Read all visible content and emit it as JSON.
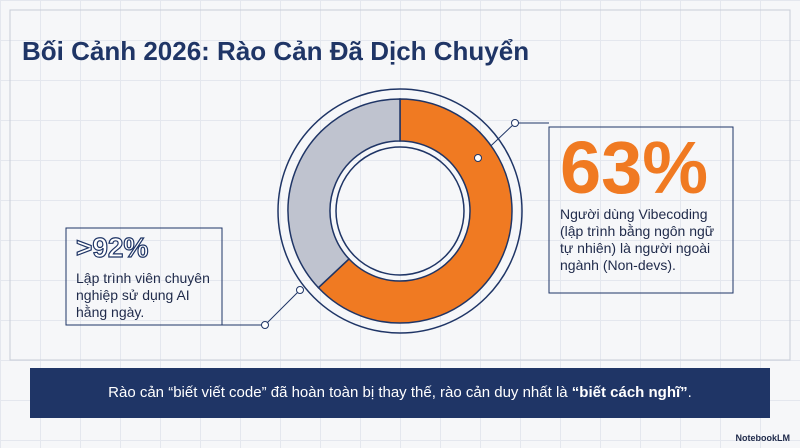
{
  "header": {
    "title": "Bối Cảnh 2026: Rào Cản Đã Dịch Chuyển"
  },
  "chart_data": {
    "type": "donut",
    "values": [
      63,
      37
    ],
    "value_labels": [
      "63%",
      null
    ],
    "colors": [
      "#f07a22",
      "#bfc3cf"
    ],
    "annotations": [
      {
        "text": "Người dùng Vibecoding (lập trình bằng ngôn ngữ tự nhiên) là người ngoài ngành (Non-devs)."
      },
      {
        "label": ">92%",
        "text": "Lập trình viên chuyên nghiệp sử dụng AI hằng ngày."
      }
    ]
  },
  "caption": [
    "Rào cản “biết viết code” đã hoàn toàn bị thay thế, rào cản duy nhất là ",
    "“biết cách nghĩ”",
    "."
  ],
  "brand": "NotebookLM"
}
